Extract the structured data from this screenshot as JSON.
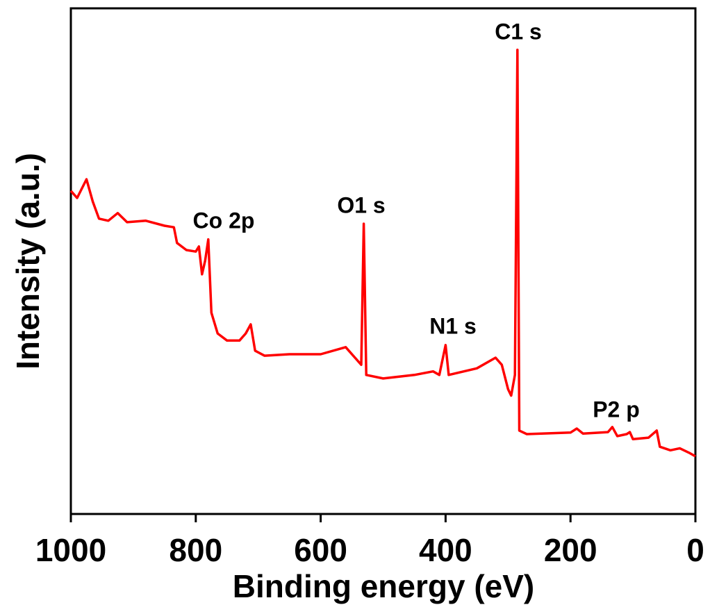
{
  "chart_data": {
    "type": "line",
    "x_label": "Binding energy (eV)",
    "y_label": "Intensity (a.u.)",
    "xlim": [
      1000,
      0
    ],
    "xticks": [
      1000,
      800,
      600,
      400,
      200,
      0
    ],
    "ylim": [
      0,
      100
    ],
    "x": [
      1000,
      990,
      975,
      965,
      955,
      940,
      925,
      910,
      880,
      850,
      835,
      830,
      815,
      800,
      795,
      790,
      785,
      780,
      775,
      765,
      750,
      730,
      720,
      712,
      705,
      690,
      650,
      600,
      560,
      545,
      535,
      531,
      527,
      500,
      450,
      420,
      410,
      400,
      395,
      350,
      320,
      310,
      300,
      295,
      289,
      285,
      282,
      270,
      200,
      190,
      180,
      140,
      133,
      125,
      110,
      105,
      100,
      75,
      62,
      57,
      40,
      25,
      10,
      0
    ],
    "series": [
      {
        "color": "#ff0000",
        "values": [
          63.9,
          62.5,
          66.2,
          61.8,
          58.4,
          58.0,
          59.5,
          57.7,
          58.0,
          57.0,
          56.7,
          53.6,
          52.2,
          51.9,
          52.9,
          47.4,
          50.1,
          54.3,
          39.8,
          35.7,
          34.3,
          34.3,
          35.7,
          37.5,
          32.3,
          31.3,
          31.6,
          31.6,
          33.0,
          30.9,
          29.5,
          57.4,
          27.5,
          26.8,
          27.5,
          28.2,
          27.5,
          33.4,
          27.5,
          28.8,
          30.9,
          29.5,
          24.7,
          23.4,
          27.5,
          91.8,
          16.5,
          15.8,
          16.1,
          16.9,
          15.9,
          16.2,
          17.2,
          15.4,
          15.8,
          16.2,
          14.8,
          15.1,
          16.5,
          13.3,
          12.6,
          13.0,
          12.1,
          11.4
        ]
      }
    ],
    "annotations": [
      "C1 s",
      "O1 s",
      "N1 s",
      "Co 2p",
      "P2 p"
    ]
  }
}
